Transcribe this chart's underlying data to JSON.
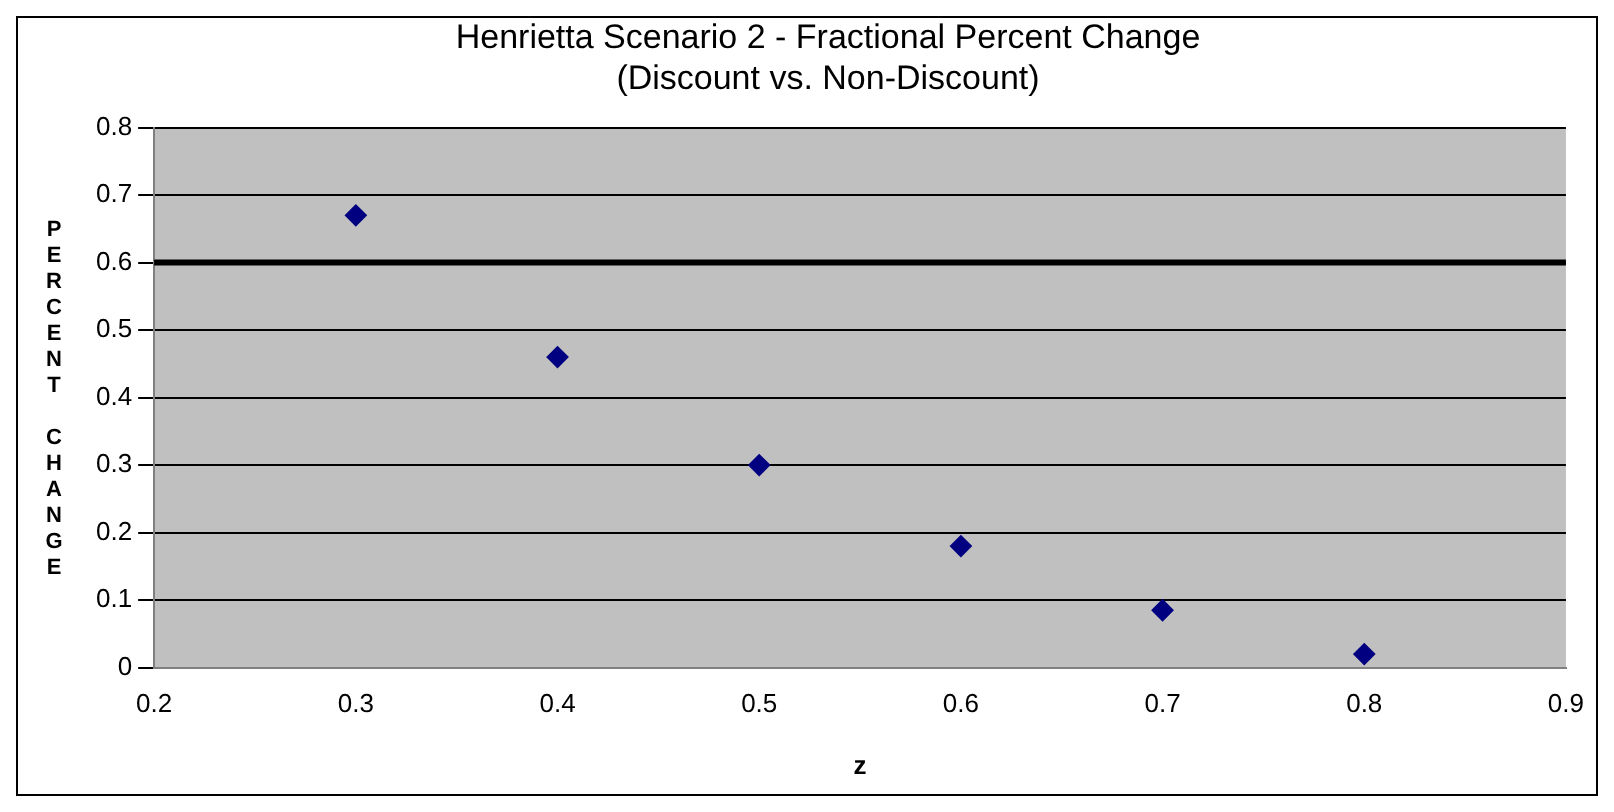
{
  "chart_data": {
    "type": "scatter",
    "title": "Henrietta Scenario 2 - Fractional Percent Change\n(Discount vs. Non-Discount)",
    "xlabel": "z",
    "ylabel": "PERCENT CHANGE",
    "x": [
      0.3,
      0.4,
      0.5,
      0.6,
      0.7,
      0.8
    ],
    "series": [
      {
        "color": "#000080",
        "values": [
          0.67,
          0.46,
          0.3,
          0.18,
          0.085,
          0.02
        ]
      }
    ],
    "xlim": [
      0.2,
      0.9
    ],
    "xticks": [
      0.2,
      0.3,
      0.4,
      0.5,
      0.6,
      0.7,
      0.8,
      0.9
    ],
    "ylim": [
      0,
      0.8
    ],
    "yticks": [
      0,
      0.1,
      0.2,
      0.3,
      0.4,
      0.5,
      0.6,
      0.7,
      0.8
    ],
    "ref_lines": [
      {
        "axis": "y",
        "value": 0.6,
        "color": "#000000"
      }
    ],
    "grid": "y",
    "legend": false,
    "marker": "diamond"
  }
}
